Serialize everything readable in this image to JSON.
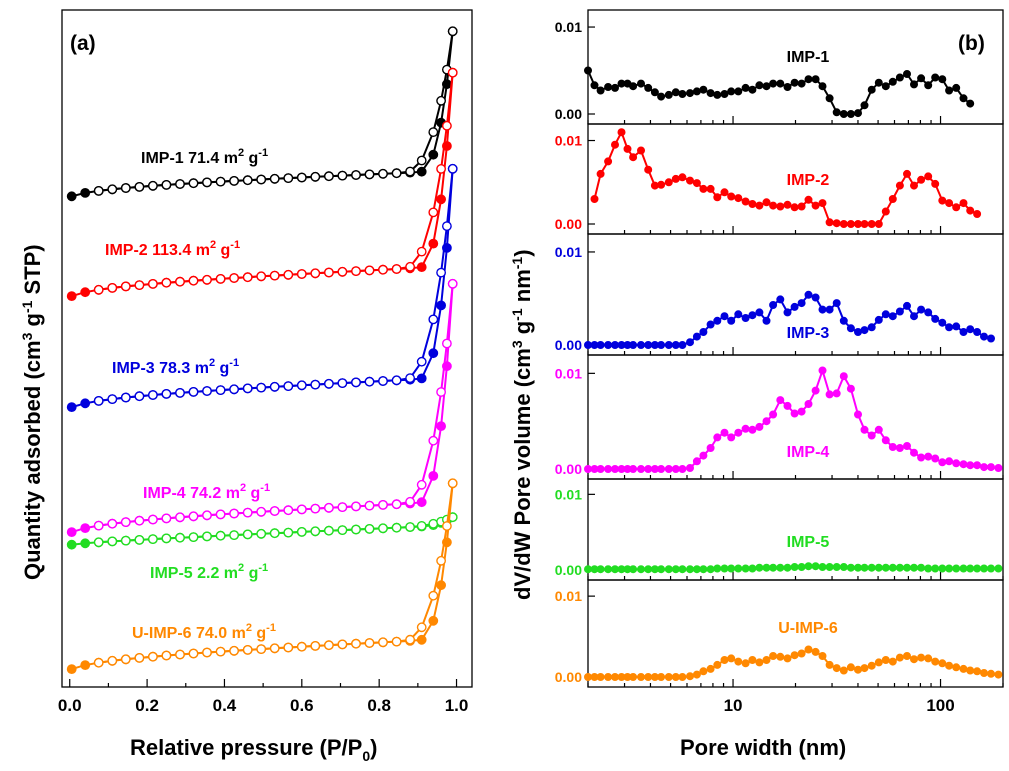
{
  "panels": {
    "a": {
      "panel_label": "(a)",
      "x_title": "Relative pressure (P/P",
      "x_title_sub": "0",
      "x_title_end": ")",
      "y_title_parts": [
        "Quantity adsorbed (cm",
        "3",
        " g",
        "-1",
        " STP)"
      ]
    },
    "b": {
      "panel_label": "(b)",
      "x_title": "Pore width (nm)",
      "y_title_parts": [
        "dV/dW Pore volume (cm",
        "3",
        " g",
        "-1",
        " nm",
        "-1",
        ")"
      ]
    }
  },
  "chart_data": [
    {
      "type": "line",
      "panel": "a",
      "xlim": [
        -0.02,
        1.04
      ],
      "x_ticks": [
        0.0,
        0.2,
        0.4,
        0.6,
        0.8,
        1.0
      ],
      "x_tick_labels": [
        "0.0",
        "0.2",
        "0.4",
        "0.6",
        "0.8",
        "1.0"
      ],
      "markers": "open circles (desorption), filled circles (adsorption)",
      "series": [
        {
          "name": "IMP-1",
          "sample": "IMP-1",
          "area": "71.4",
          "unit": " m",
          "unit_sup": "2",
          "unit_end": " g",
          "unit_end_sup": "-1",
          "color": "#000000",
          "base": 0.0,
          "rise": 0.045,
          "jump": 0.45,
          "pmax": 0.99
        },
        {
          "name": "IMP-2",
          "sample": "IMP-2",
          "area": "113.4",
          "unit": " m",
          "unit_sup": "2",
          "unit_end": " g",
          "unit_end_sup": "-1",
          "color": "#ff0000",
          "base": 0.0,
          "rise": 0.045,
          "jump": 0.53,
          "pmax": 0.99
        },
        {
          "name": "IMP-3",
          "sample": "IMP-3",
          "area": "78.3",
          "unit": " m",
          "unit_sup": "2",
          "unit_end": " g",
          "unit_end_sup": "-1",
          "color": "#0000dd",
          "base": 0.0,
          "rise": 0.045,
          "jump": 0.58,
          "pmax": 0.99
        },
        {
          "name": "IMP-4",
          "sample": "IMP-4",
          "area": "74.2",
          "unit": " m",
          "unit_sup": "2",
          "unit_end": " g",
          "unit_end_sup": "-1",
          "color": "#ff00ff",
          "base": 0.0,
          "rise": 0.045,
          "jump": 0.58,
          "pmax": 0.99
        },
        {
          "name": "IMP-5",
          "sample": "IMP-5",
          "area": "2.2",
          "unit": " m",
          "unit_sup": "2",
          "unit_end": " g",
          "unit_end_sup": "-1",
          "color": "#22dd22",
          "base": 0.0,
          "rise": 0.01,
          "jump": 0.02,
          "pmax": 0.99
        },
        {
          "name": "U-IMP-6",
          "sample": "U-IMP-6",
          "area": "74.0",
          "unit": " m",
          "unit_sup": "2",
          "unit_end": " g",
          "unit_end_sup": "-1",
          "color": "#ff8800",
          "base": 0.0,
          "rise": 0.045,
          "jump": 0.42,
          "pmax": 0.99
        }
      ]
    },
    {
      "type": "line",
      "panel": "b",
      "x_scale": "log",
      "xlim": [
        2,
        200
      ],
      "x_ticks": [
        10,
        100
      ],
      "x_tick_labels": [
        "10",
        "100"
      ],
      "y_ticks": [
        0.0,
        0.01
      ],
      "y_tick_labels": [
        "0.00",
        "0.01"
      ],
      "series": [
        {
          "name": "IMP-1",
          "color": "#000000",
          "x": [
            2,
            2.15,
            2.3,
            2.5,
            2.7,
            2.9,
            3.1,
            3.3,
            3.6,
            3.9,
            4.2,
            4.5,
            4.9,
            5.3,
            5.7,
            6.2,
            6.7,
            7.2,
            7.8,
            8.4,
            9.1,
            9.8,
            10.6,
            11.5,
            12.4,
            13.4,
            14.5,
            15.6,
            16.9,
            18.3,
            19.8,
            21.4,
            23.1,
            25,
            27,
            29.2,
            31.6,
            34.2,
            37,
            40,
            43,
            46.6,
            50.4,
            54.5,
            58.9,
            63.7,
            68.9,
            74.5,
            80.6,
            87.2,
            94.3,
            102,
            110,
            119,
            129,
            139
          ],
          "y": [
            0.005,
            0.0033,
            0.0027,
            0.0031,
            0.003,
            0.0035,
            0.0035,
            0.0032,
            0.0035,
            0.003,
            0.0025,
            0.002,
            0.0022,
            0.0025,
            0.0023,
            0.0024,
            0.0026,
            0.0028,
            0.0024,
            0.0022,
            0.0023,
            0.0026,
            0.0026,
            0.003,
            0.0028,
            0.0033,
            0.0032,
            0.0035,
            0.0035,
            0.0031,
            0.0036,
            0.0035,
            0.004,
            0.004,
            0.0032,
            0.0018,
            0.0002,
            0.0,
            0.0,
            0.0001,
            0.001,
            0.0028,
            0.0036,
            0.0032,
            0.0037,
            0.0042,
            0.0046,
            0.0034,
            0.0041,
            0.0033,
            0.0042,
            0.004,
            0.0027,
            0.003,
            0.0018,
            0.0012
          ]
        },
        {
          "name": "IMP-2",
          "color": "#ff0000",
          "x": [
            2.15,
            2.3,
            2.5,
            2.7,
            2.9,
            3.1,
            3.3,
            3.6,
            3.9,
            4.2,
            4.5,
            4.9,
            5.3,
            5.7,
            6.2,
            6.7,
            7.2,
            7.8,
            8.4,
            9.1,
            9.8,
            10.6,
            11.5,
            12.4,
            13.4,
            14.5,
            15.6,
            16.9,
            18.3,
            19.8,
            21.4,
            23.1,
            25,
            27,
            29.2,
            31.6,
            34.2,
            37,
            40,
            43,
            46.6,
            50.4,
            54.5,
            58.9,
            63.7,
            68.9,
            74.5,
            80.6,
            87.2,
            94.3,
            102,
            110,
            119,
            129,
            139,
            150
          ],
          "y": [
            0.003,
            0.006,
            0.0075,
            0.0095,
            0.011,
            0.009,
            0.008,
            0.0088,
            0.0065,
            0.0046,
            0.0047,
            0.005,
            0.0054,
            0.0056,
            0.0052,
            0.0049,
            0.0042,
            0.0042,
            0.0032,
            0.0038,
            0.0033,
            0.0031,
            0.0027,
            0.0024,
            0.0022,
            0.0026,
            0.0022,
            0.0021,
            0.0023,
            0.002,
            0.0021,
            0.0029,
            0.0022,
            0.0025,
            0.0002,
            0.0001,
            0.0,
            0.0,
            0.0,
            0.0,
            0.0,
            0.0,
            0.0015,
            0.003,
            0.0046,
            0.006,
            0.0046,
            0.0053,
            0.0057,
            0.0048,
            0.0028,
            0.0025,
            0.002,
            0.0025,
            0.0016,
            0.0012
          ]
        },
        {
          "name": "IMP-3",
          "color": "#0000dd",
          "x": [
            2,
            2.15,
            2.3,
            2.5,
            2.7,
            2.9,
            3.1,
            3.3,
            3.6,
            3.9,
            4.2,
            4.5,
            4.9,
            5.3,
            5.7,
            6.2,
            6.7,
            7.2,
            7.8,
            8.4,
            9.1,
            9.8,
            10.6,
            11.5,
            12.4,
            13.4,
            14.5,
            15.6,
            16.9,
            18.3,
            19.8,
            21.4,
            23.1,
            25,
            27,
            29.2,
            31.6,
            34.2,
            37,
            40,
            43,
            46.6,
            50.4,
            54.5,
            58.9,
            63.7,
            68.9,
            74.5,
            80.6,
            87.2,
            94.3,
            102,
            110,
            119,
            129,
            139,
            150,
            162,
            175
          ],
          "y": [
            0,
            0,
            0,
            0,
            0,
            0,
            0,
            0,
            0,
            0,
            0,
            0,
            0,
            0,
            0,
            0.0003,
            0.0009,
            0.0014,
            0.0022,
            0.0026,
            0.0031,
            0.0026,
            0.0033,
            0.0029,
            0.0032,
            0.0035,
            0.0026,
            0.0043,
            0.0049,
            0.0035,
            0.0041,
            0.0045,
            0.0054,
            0.0051,
            0.0038,
            0.0038,
            0.0045,
            0.0026,
            0.0018,
            0.0014,
            0.0016,
            0.0019,
            0.0027,
            0.0033,
            0.0031,
            0.0036,
            0.0042,
            0.0031,
            0.0038,
            0.0035,
            0.0028,
            0.0024,
            0.0019,
            0.002,
            0.0014,
            0.0017,
            0.0014,
            0.0009,
            0.0007
          ]
        },
        {
          "name": "IMP-4",
          "color": "#ff00ff",
          "x": [
            2,
            2.15,
            2.3,
            2.5,
            2.7,
            2.9,
            3.1,
            3.3,
            3.6,
            3.9,
            4.2,
            4.5,
            4.9,
            5.3,
            5.7,
            6.2,
            6.7,
            7.2,
            7.8,
            8.4,
            9.1,
            9.8,
            10.6,
            11.5,
            12.4,
            13.4,
            14.5,
            15.6,
            16.9,
            18.3,
            19.8,
            21.4,
            23.1,
            25,
            27,
            29.2,
            31.6,
            34.2,
            37,
            40,
            43,
            46.6,
            50.4,
            54.5,
            58.9,
            63.7,
            68.9,
            74.5,
            80.6,
            87.2,
            94.3,
            102,
            110,
            119,
            129,
            139,
            150,
            162,
            175,
            190
          ],
          "y": [
            0,
            0,
            0,
            0,
            0,
            0,
            0,
            0,
            0,
            0,
            0,
            0,
            0,
            0,
            0,
            0.0001,
            0.0008,
            0.0014,
            0.0022,
            0.0033,
            0.0038,
            0.0033,
            0.0038,
            0.0042,
            0.0041,
            0.0044,
            0.005,
            0.0057,
            0.0072,
            0.0066,
            0.0058,
            0.006,
            0.0068,
            0.0082,
            0.0103,
            0.0078,
            0.0079,
            0.0097,
            0.0084,
            0.0057,
            0.0041,
            0.0035,
            0.0041,
            0.003,
            0.0023,
            0.0022,
            0.0024,
            0.0017,
            0.0012,
            0.0013,
            0.0011,
            0.0007,
            0.0008,
            0.0006,
            0.0005,
            0.0004,
            0.0004,
            0.0002,
            0.0002,
            0.0001
          ]
        },
        {
          "name": "IMP-5",
          "color": "#22dd22",
          "x": [
            2,
            2.15,
            2.3,
            2.5,
            2.7,
            2.9,
            3.1,
            3.3,
            3.6,
            3.9,
            4.2,
            4.5,
            4.9,
            5.3,
            5.7,
            6.2,
            6.7,
            7.2,
            7.8,
            8.4,
            9.1,
            9.8,
            10.6,
            11.5,
            12.4,
            13.4,
            14.5,
            15.6,
            16.9,
            18.3,
            19.8,
            21.4,
            23.1,
            25,
            27,
            29.2,
            31.6,
            34.2,
            37,
            40,
            43,
            46.6,
            50.4,
            54.5,
            58.9,
            63.7,
            68.9,
            74.5,
            80.6,
            87.2,
            94.3,
            102,
            110,
            119,
            129,
            139,
            150,
            162,
            175,
            190
          ],
          "y": [
            0.0001,
            0.0001,
            0.0001,
            0.0001,
            0.0001,
            0.0001,
            0.0001,
            0.0001,
            0.0001,
            0.0001,
            0.0001,
            0.0001,
            0.0001,
            0.0001,
            0.0001,
            0.0001,
            0.0001,
            0.0001,
            0.0001,
            0.0002,
            0.0002,
            0.0002,
            0.0002,
            0.0002,
            0.0002,
            0.0003,
            0.0003,
            0.0003,
            0.0003,
            0.0003,
            0.0004,
            0.0004,
            0.0005,
            0.0005,
            0.0004,
            0.0004,
            0.0004,
            0.0004,
            0.0003,
            0.0003,
            0.0003,
            0.0003,
            0.0003,
            0.0003,
            0.0003,
            0.0003,
            0.0003,
            0.0003,
            0.0003,
            0.0002,
            0.0002,
            0.0002,
            0.0002,
            0.0002,
            0.0002,
            0.0002,
            0.0002,
            0.0002,
            0.0002,
            0.0002
          ]
        },
        {
          "name": "U-IMP-6",
          "color": "#ff8800",
          "x": [
            2,
            2.15,
            2.3,
            2.5,
            2.7,
            2.9,
            3.1,
            3.3,
            3.6,
            3.9,
            4.2,
            4.5,
            4.9,
            5.3,
            5.7,
            6.2,
            6.7,
            7.2,
            7.8,
            8.4,
            9.1,
            9.8,
            10.6,
            11.5,
            12.4,
            13.4,
            14.5,
            15.6,
            16.9,
            18.3,
            19.8,
            21.4,
            23.1,
            25,
            27,
            29.2,
            31.6,
            34.2,
            37,
            40,
            43,
            46.6,
            50.4,
            54.5,
            58.9,
            63.7,
            68.9,
            74.5,
            80.6,
            87.2,
            94.3,
            102,
            110,
            119,
            129,
            139,
            150,
            162,
            175,
            190
          ],
          "y": [
            0,
            0,
            0,
            0,
            0,
            0,
            0,
            0,
            0,
            0,
            0,
            0,
            0,
            0,
            0,
            0.0001,
            0.0003,
            0.0007,
            0.001,
            0.0015,
            0.0021,
            0.0023,
            0.0019,
            0.0017,
            0.0021,
            0.0018,
            0.0021,
            0.0026,
            0.0025,
            0.0023,
            0.0027,
            0.0029,
            0.0034,
            0.0031,
            0.0026,
            0.0015,
            0.0011,
            0.0008,
            0.0012,
            0.0009,
            0.0011,
            0.0014,
            0.0018,
            0.0021,
            0.0019,
            0.0024,
            0.0026,
            0.0022,
            0.0024,
            0.0023,
            0.0019,
            0.0017,
            0.0014,
            0.0012,
            0.001,
            0.0008,
            0.0007,
            0.0005,
            0.0004,
            0.0003
          ]
        }
      ]
    }
  ]
}
